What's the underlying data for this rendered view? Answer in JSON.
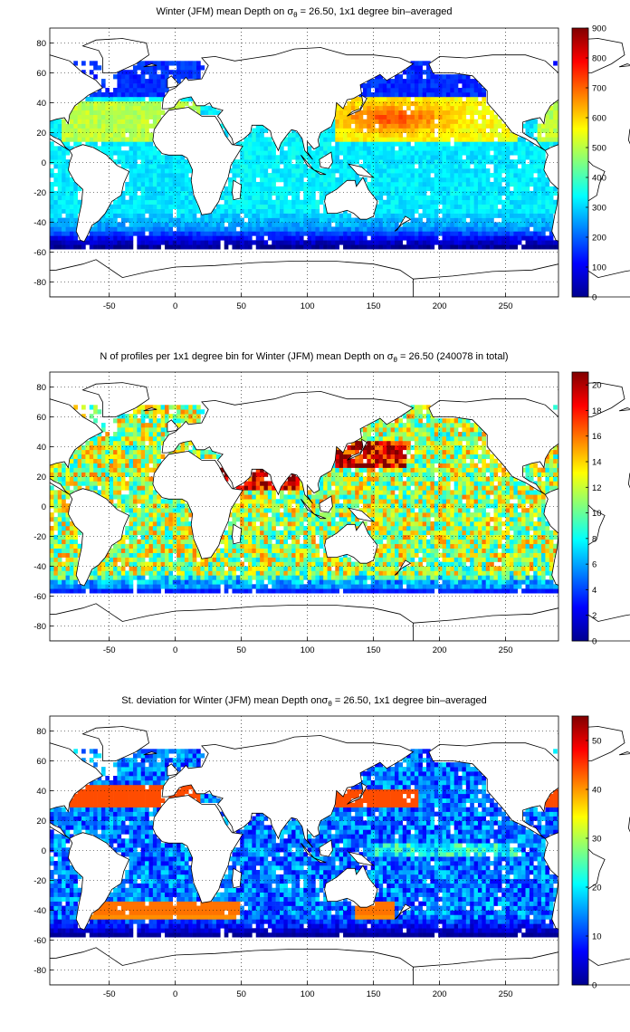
{
  "chart_data": [
    {
      "type": "heatmap",
      "title_pre": "Winter (JFM) mean Depth on σ",
      "title_sub": "θ",
      "title_post": " = 26.50, 1x1 degree bin–averaged",
      "xlim": [
        -95,
        290
      ],
      "ylim": [
        -90,
        90
      ],
      "xticks": [
        -50,
        0,
        50,
        100,
        150,
        200,
        250
      ],
      "yticks": [
        -80,
        -60,
        -40,
        -20,
        0,
        20,
        40,
        60,
        80
      ],
      "colorbar": {
        "min": 0,
        "max": 900,
        "ticks": [
          0,
          100,
          200,
          300,
          400,
          500,
          600,
          700,
          800,
          900
        ]
      },
      "colormap": "jet",
      "grid": true
    },
    {
      "type": "heatmap",
      "title_pre": "N of profiles per 1x1 degree bin for Winter (JFM) mean Depth on σ",
      "title_sub": "θ",
      "title_post": " = 26.50 (240078 in total)",
      "xlim": [
        -95,
        290
      ],
      "ylim": [
        -90,
        90
      ],
      "xticks": [
        -50,
        0,
        50,
        100,
        150,
        200,
        250
      ],
      "yticks": [
        -80,
        -60,
        -40,
        -20,
        0,
        20,
        40,
        60,
        80
      ],
      "colorbar": {
        "min": 0,
        "max": 21,
        "ticks": [
          0,
          2,
          4,
          6,
          8,
          10,
          12,
          14,
          16,
          18,
          20
        ]
      },
      "colormap": "jet",
      "grid": true
    },
    {
      "type": "heatmap",
      "title_pre": "St. deviation for Winter (JFM) mean Depth onσ",
      "title_sub": "θ",
      "title_post": " = 26.50, 1x1 degree bin–averaged",
      "xlim": [
        -95,
        290
      ],
      "ylim": [
        -90,
        90
      ],
      "xticks": [
        -50,
        0,
        50,
        100,
        150,
        200,
        250
      ],
      "yticks": [
        -80,
        -60,
        -40,
        -20,
        0,
        20,
        40,
        60,
        80
      ],
      "colorbar": {
        "min": 0,
        "max": 55,
        "ticks": [
          0,
          10,
          20,
          30,
          40,
          50
        ]
      },
      "colormap": "jet",
      "grid": true
    }
  ]
}
